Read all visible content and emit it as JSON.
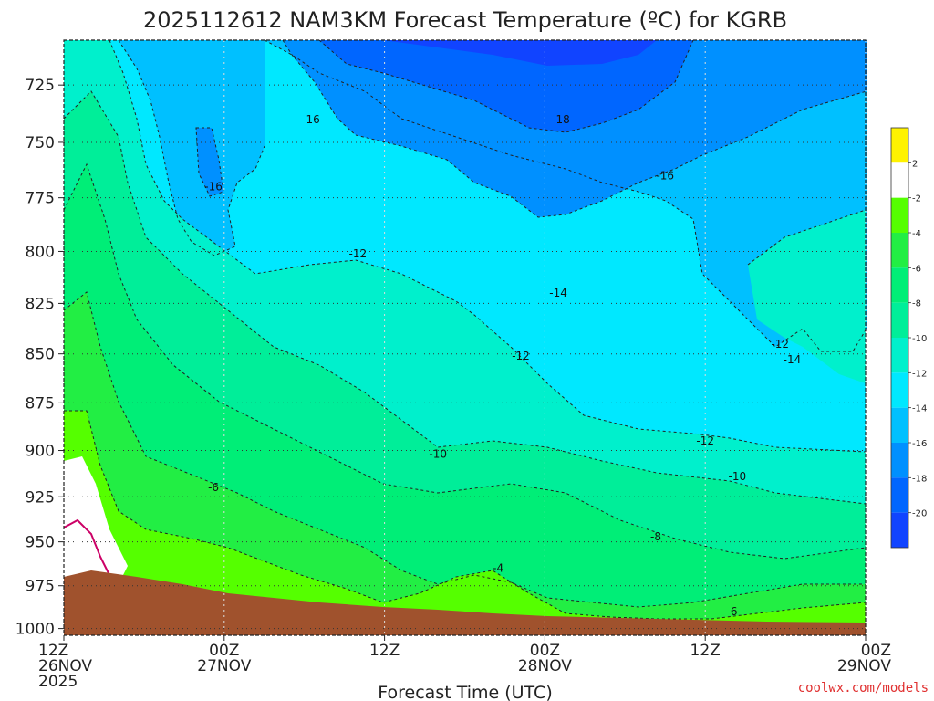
{
  "chart_data": {
    "type": "heatmap",
    "title": "2025112612 NAM3KM Forecast Temperature (ºC) for KGRB",
    "xlabel": "Forecast Time (UTC)",
    "ylabel": "",
    "x_ticks": [
      {
        "hour": 0,
        "line1": "12Z",
        "line2": "26NOV",
        "line3": "2025"
      },
      {
        "hour": 12,
        "line1": "00Z",
        "line2": "27NOV",
        "line3": ""
      },
      {
        "hour": 24,
        "line1": "12Z",
        "line2": "",
        "line3": ""
      },
      {
        "hour": 36,
        "line1": "00Z",
        "line2": "28NOV",
        "line3": ""
      },
      {
        "hour": 48,
        "line1": "12Z",
        "line2": "",
        "line3": ""
      },
      {
        "hour": 60,
        "line1": "00Z",
        "line2": "29NOV",
        "line3": ""
      }
    ],
    "xlim": [
      0,
      60
    ],
    "y_ticks": [
      725,
      750,
      775,
      800,
      825,
      850,
      875,
      900,
      925,
      950,
      975,
      1000
    ],
    "ylim": [
      706,
      1004
    ],
    "y_scale": "log",
    "colorbar": {
      "ticks": [
        2,
        -2,
        -4,
        -6,
        -8,
        -10,
        -12,
        -14,
        -16,
        -18,
        -20
      ],
      "bins": [
        {
          "range": "> 2",
          "color": "#fff200"
        },
        {
          "range": "-2 to 2",
          "color": "#ffffff"
        },
        {
          "range": "-4 to -2",
          "color": "#55ff00"
        },
        {
          "range": "-6 to -4",
          "color": "#22ee44"
        },
        {
          "range": "-8 to -6",
          "color": "#00ee77"
        },
        {
          "range": "-10 to -8",
          "color": "#00ee99"
        },
        {
          "range": "-12 to -10",
          "color": "#00f0cc"
        },
        {
          "range": "-14 to -12",
          "color": "#00e8ff"
        },
        {
          "range": "-16 to -14",
          "color": "#00c0ff"
        },
        {
          "range": "-18 to -16",
          "color": "#0090ff"
        },
        {
          "range": "-20 to -18",
          "color": "#0066ff"
        },
        {
          "range": "< -20",
          "color": "#1144ff"
        }
      ]
    },
    "contour_labels": [
      {
        "text": "-16",
        "hour": 18.5,
        "p": 740
      },
      {
        "text": "-18",
        "hour": 37.2,
        "p": 740
      },
      {
        "text": "-16",
        "hour": 11.2,
        "p": 770
      },
      {
        "text": "-16",
        "hour": 45.0,
        "p": 765
      },
      {
        "text": "-12",
        "hour": 22.0,
        "p": 801
      },
      {
        "text": "-14",
        "hour": 37.0,
        "p": 820
      },
      {
        "text": "-12",
        "hour": 34.2,
        "p": 851
      },
      {
        "text": "-12",
        "hour": 53.6,
        "p": 845
      },
      {
        "text": "-14",
        "hour": 54.5,
        "p": 853
      },
      {
        "text": "-10",
        "hour": 28.0,
        "p": 902
      },
      {
        "text": "-12",
        "hour": 48.0,
        "p": 895
      },
      {
        "text": "-6",
        "hour": 11.2,
        "p": 920
      },
      {
        "text": "-10",
        "hour": 50.4,
        "p": 914
      },
      {
        "text": "-4",
        "hour": 32.5,
        "p": 965
      },
      {
        "text": "-8",
        "hour": 44.3,
        "p": 947
      },
      {
        "text": "-6",
        "hour": 50.0,
        "p": 990
      }
    ],
    "grid": true,
    "credit": "coolwx.com/models"
  },
  "colors": {
    "terrain": "#a0522d",
    "freezing_line": "#cc0066",
    "background": "#ffffff"
  }
}
